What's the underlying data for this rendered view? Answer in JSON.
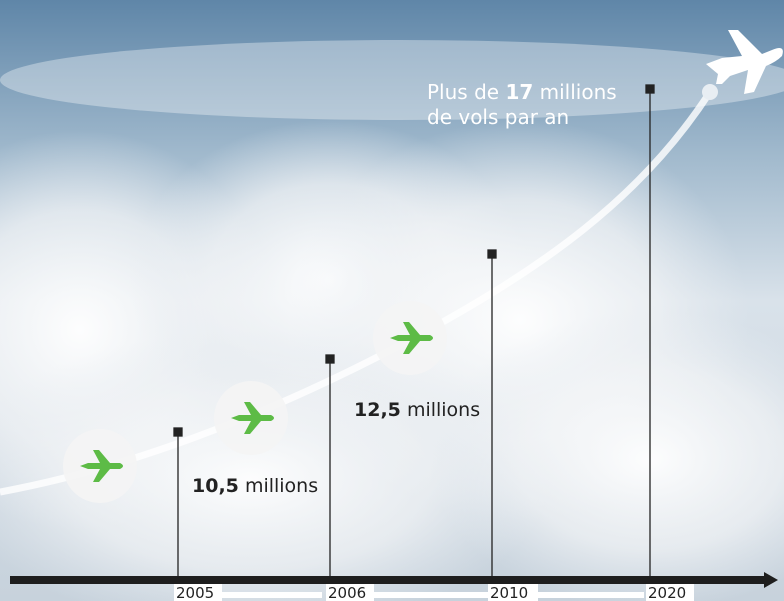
{
  "headline": {
    "prefix": "Plus de",
    "bold": "17",
    "suffix": "millions",
    "line2": "de vols par an"
  },
  "labels": [
    {
      "bold": "10,5",
      "text": "millions"
    },
    {
      "bold": "12,5",
      "text": "millions"
    }
  ],
  "timeline": {
    "years": [
      "2005",
      "2006",
      "2010",
      "2020"
    ]
  }
}
